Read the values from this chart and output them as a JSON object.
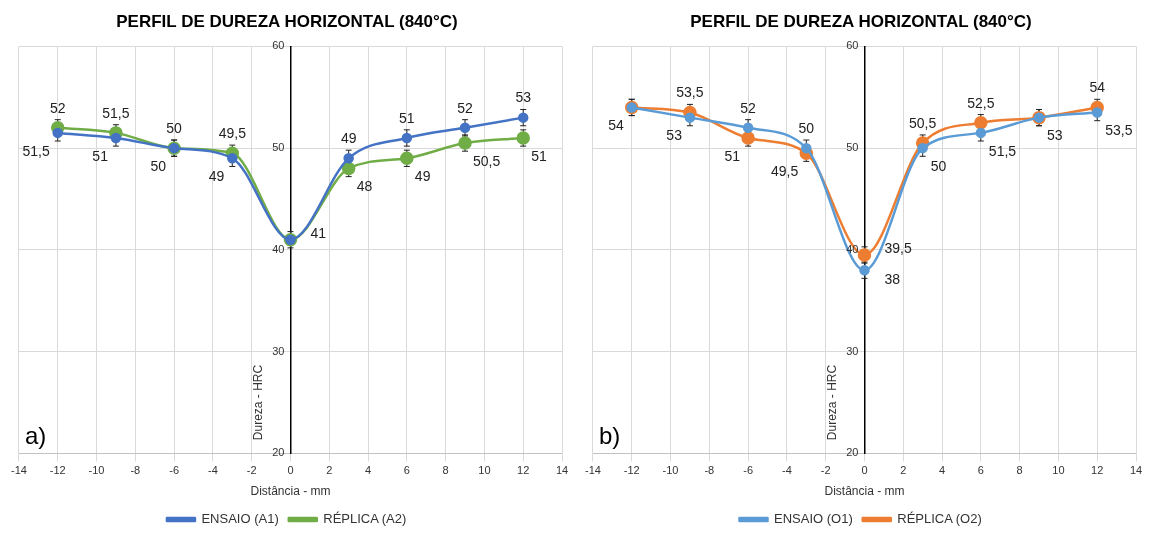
{
  "chart_data": [
    {
      "type": "line",
      "title": "PERFIL DE DUREZA HORIZONTAL (840°C)",
      "xlabel": "Distância - mm",
      "ylabel": "Dureza - HRC",
      "x": [
        -12,
        -9,
        -6,
        -3,
        0,
        3,
        6,
        9,
        12
      ],
      "xlim": [
        -14,
        14
      ],
      "xticks": [
        -14,
        -12,
        -10,
        -8,
        -6,
        -4,
        -2,
        0,
        2,
        4,
        6,
        8,
        10,
        12,
        14
      ],
      "ylim": [
        20,
        60
      ],
      "yticks": [
        20,
        30,
        40,
        50,
        60
      ],
      "grid": true,
      "legend": "bottom",
      "marker": "circle",
      "annotations": [
        "a)"
      ],
      "series": [
        {
          "name": "ENSAIO (A1)",
          "color": "#4472c4",
          "values": [
            51.5,
            51,
            50,
            49,
            41,
            49,
            51,
            52,
            53
          ],
          "value_labels": [
            "51,5",
            "51",
            "50",
            "49",
            "41",
            "49",
            "51",
            "52",
            "53"
          ],
          "errors": [
            0.8,
            0.8,
            0.8,
            0.8,
            0.8,
            0.8,
            0.8,
            0.8,
            0.8
          ]
        },
        {
          "name": "RÉPLICA (A2)",
          "color": "#70ad47",
          "values": [
            52,
            51.5,
            50,
            49.5,
            41,
            48,
            49,
            50.5,
            51
          ],
          "value_labels": [
            "52",
            "51,5",
            "50",
            "49,5",
            null,
            "48",
            "49",
            "50,5",
            "51"
          ],
          "errors": [
            0.8,
            0.8,
            0.8,
            0.8,
            null,
            0.8,
            0.8,
            0.8,
            0.8
          ]
        }
      ]
    },
    {
      "type": "line",
      "title": "PERFIL DE DUREZA HORIZONTAL (840°C)",
      "xlabel": "Distância - mm",
      "ylabel": "Dureza - HRC",
      "x": [
        -12,
        -9,
        -6,
        -3,
        0,
        3,
        6,
        9,
        12
      ],
      "xlim": [
        -14,
        14
      ],
      "xticks": [
        -14,
        -12,
        -10,
        -8,
        -6,
        -4,
        -2,
        0,
        2,
        4,
        6,
        8,
        10,
        12,
        14
      ],
      "ylim": [
        20,
        60
      ],
      "yticks": [
        20,
        30,
        40,
        50,
        60
      ],
      "grid": true,
      "legend": "bottom",
      "marker": "circle",
      "annotations": [
        "b)"
      ],
      "series": [
        {
          "name": "ENSAIO (O1)",
          "color": "#5b9bd5",
          "values": [
            54,
            53,
            52,
            50,
            38,
            50,
            51.5,
            53,
            53.5
          ],
          "value_labels": [
            null,
            "53",
            "52",
            "50",
            "38",
            "50",
            "51,5",
            null,
            "53,5"
          ],
          "errors": [
            0.8,
            0.8,
            0.8,
            0.8,
            0.8,
            0.8,
            0.8,
            0.8,
            0.8
          ]
        },
        {
          "name": "RÉPLICA (O2)",
          "color": "#ed7d31",
          "values": [
            54,
            53.5,
            51,
            49.5,
            39.5,
            50.5,
            52.5,
            53,
            54
          ],
          "value_labels": [
            "54",
            "53,5",
            "51",
            "49,5",
            "39,5",
            "50,5",
            "52,5",
            "53",
            "54"
          ],
          "errors": [
            0.8,
            0.8,
            0.8,
            0.8,
            0.8,
            0.8,
            0.8,
            0.8,
            0.8
          ]
        }
      ]
    }
  ]
}
